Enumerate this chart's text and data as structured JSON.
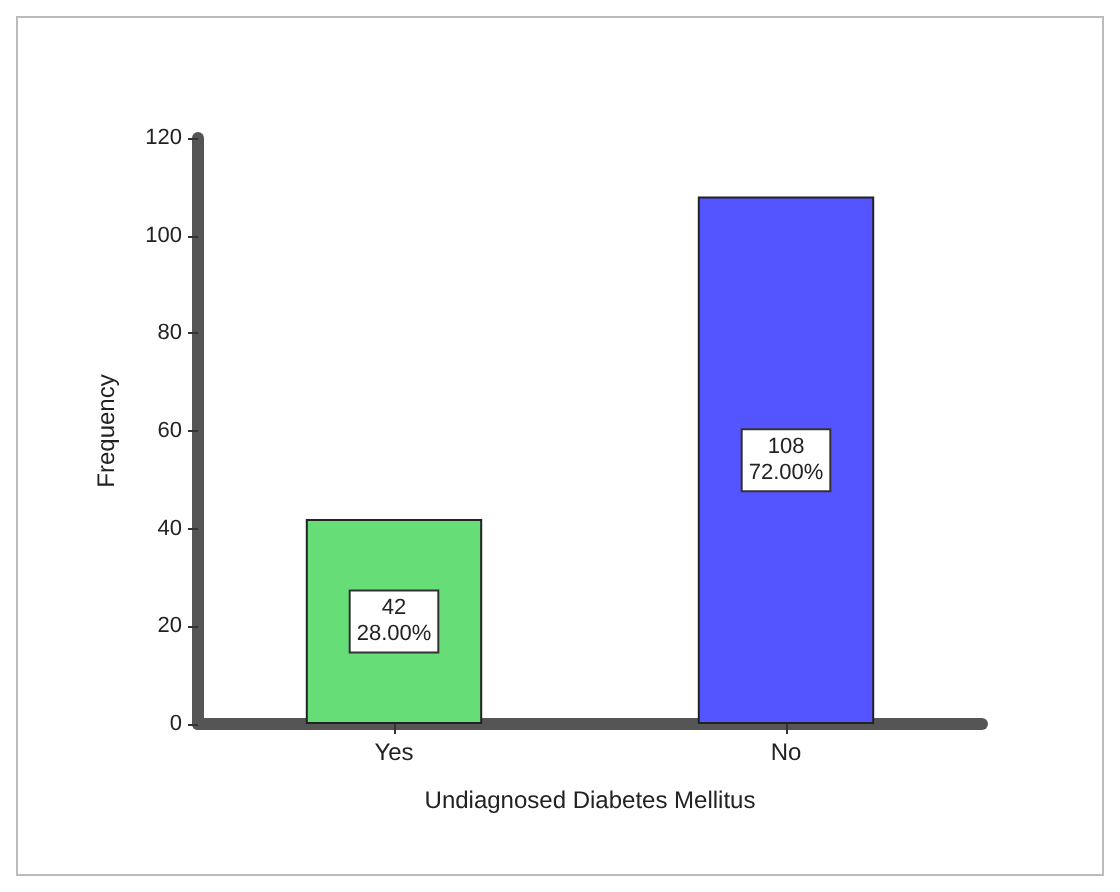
{
  "chart_data": {
    "type": "bar",
    "xlabel": "Undiagnosed Diabetes Mellitus",
    "ylabel": "Frequency",
    "categories": [
      "Yes",
      "No"
    ],
    "values": [
      42,
      108
    ],
    "colors": [
      "#66dd77",
      "#5555ff"
    ],
    "value_labels": [
      "42\n28.00%",
      "108\n72.00%"
    ],
    "ylim": [
      0,
      120
    ],
    "yticks": [
      0,
      20,
      40,
      60,
      80,
      100,
      120
    ],
    "grid": false
  }
}
